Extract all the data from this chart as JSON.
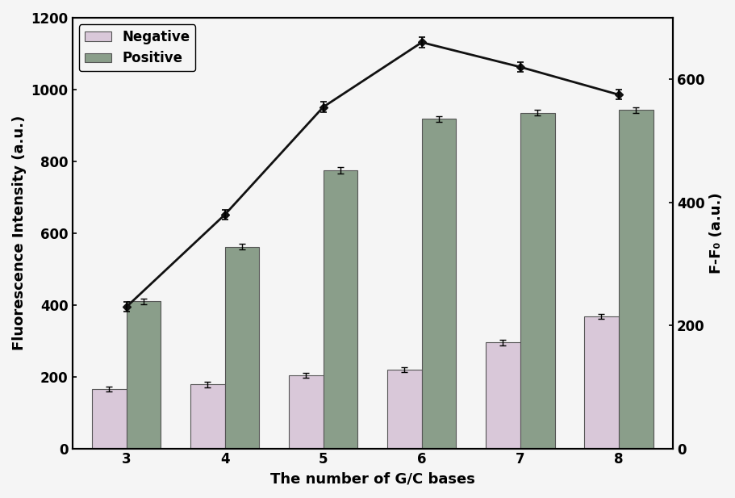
{
  "x_labels": [
    3,
    4,
    5,
    6,
    7,
    8
  ],
  "negative_bars": [
    165,
    178,
    203,
    220,
    295,
    368
  ],
  "positive_bars": [
    410,
    562,
    775,
    918,
    935,
    943
  ],
  "negative_errors": [
    7,
    7,
    7,
    7,
    7,
    7
  ],
  "positive_errors": [
    8,
    8,
    8,
    8,
    8,
    8
  ],
  "line_values_right": [
    230,
    380,
    555,
    660,
    620,
    575
  ],
  "line_errors": [
    8,
    8,
    8,
    8,
    8,
    8
  ],
  "negative_color": "#d9c8d9",
  "positive_color": "#8a9e8a",
  "line_color": "#111111",
  "ylabel_left": "Fluorescence Intensity (a.u.)",
  "ylabel_right": "F-F₀ (a.u.)",
  "xlabel": "The number of G/C bases",
  "ylim_left": [
    0,
    1200
  ],
  "ylim_right": [
    0,
    700
  ],
  "yticks_left": [
    0,
    200,
    400,
    600,
    800,
    1000,
    1200
  ],
  "yticks_right": [
    0,
    200,
    400,
    600
  ],
  "bar_width": 0.35,
  "figsize": [
    9.12,
    6.17
  ],
  "dpi": 100,
  "bg_color": "#f5f5f5"
}
